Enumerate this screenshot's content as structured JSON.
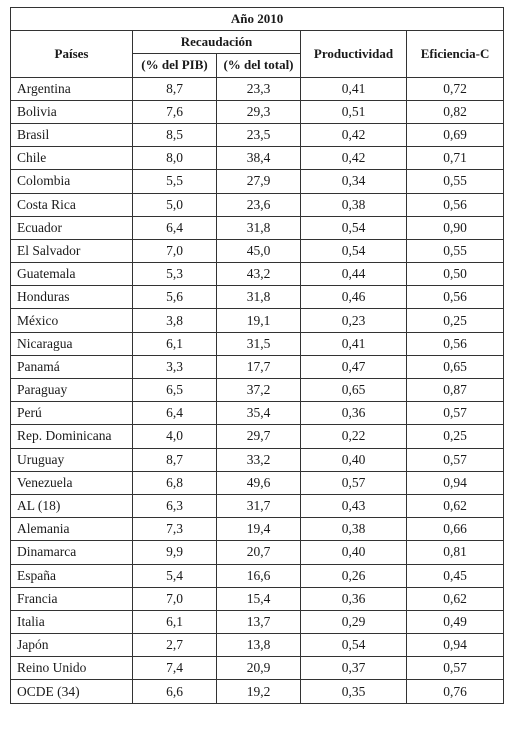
{
  "header": {
    "year": "Año 2010",
    "countries": "Países",
    "recaudacion": "Recaudación",
    "pct_pib": "(% del PIB)",
    "pct_total": "(% del total)",
    "productividad": "Productividad",
    "eficiencia": "Eficiencia-C"
  },
  "rows": [
    [
      "Argentina",
      "8,7",
      "23,3",
      "0,41",
      "0,72"
    ],
    [
      "Bolivia",
      "7,6",
      "29,3",
      "0,51",
      "0,82"
    ],
    [
      "Brasil",
      "8,5",
      "23,5",
      "0,42",
      "0,69"
    ],
    [
      "Chile",
      "8,0",
      "38,4",
      "0,42",
      "0,71"
    ],
    [
      "Colombia",
      "5,5",
      "27,9",
      "0,34",
      "0,55"
    ],
    [
      "Costa Rica",
      "5,0",
      "23,6",
      "0,38",
      "0,56"
    ],
    [
      "Ecuador",
      "6,4",
      "31,8",
      "0,54",
      "0,90"
    ],
    [
      "El Salvador",
      "7,0",
      "45,0",
      "0,54",
      "0,55"
    ],
    [
      "Guatemala",
      "5,3",
      "43,2",
      "0,44",
      "0,50"
    ],
    [
      "Honduras",
      "5,6",
      "31,8",
      "0,46",
      "0,56"
    ],
    [
      "México",
      "3,8",
      "19,1",
      "0,23",
      "0,25"
    ],
    [
      "Nicaragua",
      "6,1",
      "31,5",
      "0,41",
      "0,56"
    ],
    [
      "Panamá",
      "3,3",
      "17,7",
      "0,47",
      "0,65"
    ],
    [
      "Paraguay",
      "6,5",
      "37,2",
      "0,65",
      "0,87"
    ],
    [
      "Perú",
      "6,4",
      "35,4",
      "0,36",
      "0,57"
    ],
    [
      "Rep. Dominicana",
      "4,0",
      "29,7",
      "0,22",
      "0,25"
    ],
    [
      "Uruguay",
      "8,7",
      "33,2",
      "0,40",
      "0,57"
    ],
    [
      "Venezuela",
      "6,8",
      "49,6",
      "0,57",
      "0,94"
    ],
    [
      "AL (18)",
      "6,3",
      "31,7",
      "0,43",
      "0,62"
    ],
    [
      "Alemania",
      "7,3",
      "19,4",
      "0,38",
      "0,66"
    ],
    [
      "Dinamarca",
      "9,9",
      "20,7",
      "0,40",
      "0,81"
    ],
    [
      "España",
      "5,4",
      "16,6",
      "0,26",
      "0,45"
    ],
    [
      "Francia",
      "7,0",
      "15,4",
      "0,36",
      "0,62"
    ],
    [
      "Italia",
      "6,1",
      "13,7",
      "0,29",
      "0,49"
    ],
    [
      "Japón",
      "2,7",
      "13,8",
      "0,54",
      "0,94"
    ],
    [
      "Reino Unido",
      "7,4",
      "20,9",
      "0,37",
      "0,57"
    ],
    [
      "OCDE (34)",
      "6,6",
      "19,2",
      "0,35",
      "0,76"
    ]
  ]
}
